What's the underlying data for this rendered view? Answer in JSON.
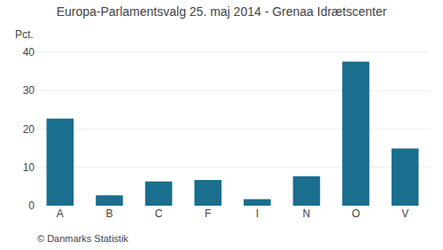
{
  "chart_data": {
    "type": "bar",
    "title": "Europa-Parlamentsvalg 25. maj 2014 - Grenaa Idrætscenter",
    "ylabel": "Pct.",
    "annotations": [
      "© Danmarks Statistik"
    ],
    "categories": [
      "A",
      "B",
      "C",
      "F",
      "I",
      "N",
      "O",
      "V"
    ],
    "values": [
      22.7,
      2.7,
      6.3,
      6.7,
      1.7,
      7.7,
      37.5,
      14.9
    ],
    "color": "#1a6e8e",
    "ylim": [
      0,
      42
    ],
    "yticks": [
      0,
      10,
      20,
      30,
      40
    ],
    "grid": true
  }
}
